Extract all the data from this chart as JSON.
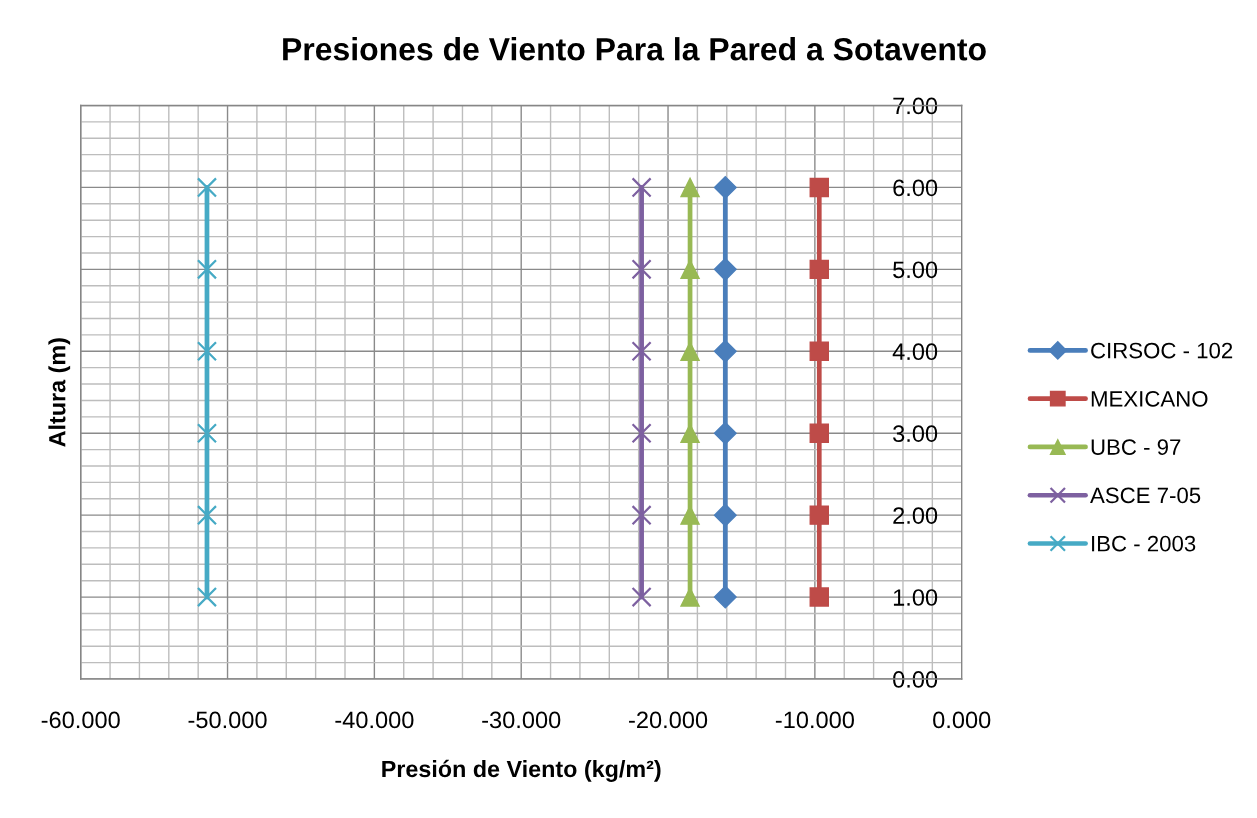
{
  "chart_data": {
    "type": "line",
    "title": "Presiones de Viento Para la Pared a Sotavento",
    "xlabel": "Presión de Viento (kg/m²)",
    "ylabel": "Altura (m)",
    "series": [
      {
        "name": "CIRSOC - 102",
        "color": "#4a7ebb",
        "marker": "diamond",
        "x": [
          -16.1,
          -16.1,
          -16.1,
          -16.1,
          -16.1,
          -16.1
        ],
        "values": [
          1,
          2,
          3,
          4,
          5,
          6
        ]
      },
      {
        "name": "MEXICANO",
        "color": "#be4b48",
        "marker": "square",
        "x": [
          -9.7,
          -9.7,
          -9.7,
          -9.7,
          -9.7,
          -9.7
        ],
        "values": [
          1,
          2,
          3,
          4,
          5,
          6
        ]
      },
      {
        "name": "UBC - 97",
        "color": "#98b954",
        "marker": "triangle",
        "x": [
          -18.5,
          -18.5,
          -18.5,
          -18.5,
          -18.5,
          -18.5
        ],
        "values": [
          1,
          2,
          3,
          4,
          5,
          6
        ]
      },
      {
        "name": "ASCE 7-05",
        "color": "#7d60a0",
        "marker": "cross",
        "x": [
          -21.8,
          -21.8,
          -21.8,
          -21.8,
          -21.8,
          -21.8
        ],
        "values": [
          1,
          2,
          3,
          4,
          5,
          6
        ]
      },
      {
        "name": "IBC - 2003",
        "color": "#46aac5",
        "marker": "cross",
        "x": [
          -51.4,
          -51.4,
          -51.4,
          -51.4,
          -51.4,
          -51.4
        ],
        "values": [
          1,
          2,
          3,
          4,
          5,
          6
        ]
      }
    ],
    "xlim": [
      -60,
      0
    ],
    "xticks": [
      {
        "value": -60,
        "label": "-60.000"
      },
      {
        "value": -58,
        "label": null
      },
      {
        "value": -56,
        "label": null
      },
      {
        "value": -54,
        "label": null
      },
      {
        "value": -52,
        "label": null
      },
      {
        "value": -50,
        "label": "-50.000"
      },
      {
        "value": -48,
        "label": null
      },
      {
        "value": -46,
        "label": null
      },
      {
        "value": -44,
        "label": null
      },
      {
        "value": -42,
        "label": null
      },
      {
        "value": -40,
        "label": "-40.000"
      },
      {
        "value": -38,
        "label": null
      },
      {
        "value": -36,
        "label": null
      },
      {
        "value": -34,
        "label": null
      },
      {
        "value": -32,
        "label": null
      },
      {
        "value": -30,
        "label": "-30.000"
      },
      {
        "value": -28,
        "label": null
      },
      {
        "value": -26,
        "label": null
      },
      {
        "value": -24,
        "label": null
      },
      {
        "value": -22,
        "label": null
      },
      {
        "value": -20,
        "label": "-20.000"
      },
      {
        "value": -18,
        "label": null
      },
      {
        "value": -16,
        "label": null
      },
      {
        "value": -14,
        "label": null
      },
      {
        "value": -12,
        "label": null
      },
      {
        "value": -10,
        "label": "-10.000"
      },
      {
        "value": -8,
        "label": null
      },
      {
        "value": -6,
        "label": null
      },
      {
        "value": -4,
        "label": null
      },
      {
        "value": -2,
        "label": null
      },
      {
        "value": 0,
        "label": "0.000"
      }
    ],
    "ylim": [
      0,
      7
    ],
    "yticks": [
      {
        "value": 0,
        "label": "0.00"
      },
      {
        "value": 0.2,
        "label": null
      },
      {
        "value": 0.4,
        "label": null
      },
      {
        "value": 0.6,
        "label": null
      },
      {
        "value": 0.8,
        "label": null
      },
      {
        "value": 1,
        "label": "1.00"
      },
      {
        "value": 1.2,
        "label": null
      },
      {
        "value": 1.4,
        "label": null
      },
      {
        "value": 1.6,
        "label": null
      },
      {
        "value": 1.8,
        "label": null
      },
      {
        "value": 2,
        "label": "2.00"
      },
      {
        "value": 2.2,
        "label": null
      },
      {
        "value": 2.4,
        "label": null
      },
      {
        "value": 2.6,
        "label": null
      },
      {
        "value": 2.8,
        "label": null
      },
      {
        "value": 3,
        "label": "3.00"
      },
      {
        "value": 3.2,
        "label": null
      },
      {
        "value": 3.4,
        "label": null
      },
      {
        "value": 3.6,
        "label": null
      },
      {
        "value": 3.8,
        "label": null
      },
      {
        "value": 4,
        "label": "4.00"
      },
      {
        "value": 4.2,
        "label": null
      },
      {
        "value": 4.4,
        "label": null
      },
      {
        "value": 4.6,
        "label": null
      },
      {
        "value": 4.8,
        "label": null
      },
      {
        "value": 5,
        "label": "5.00"
      },
      {
        "value": 5.2,
        "label": null
      },
      {
        "value": 5.4,
        "label": null
      },
      {
        "value": 5.6,
        "label": null
      },
      {
        "value": 5.8,
        "label": null
      },
      {
        "value": 6,
        "label": "6.00"
      },
      {
        "value": 6.2,
        "label": null
      },
      {
        "value": 6.4,
        "label": null
      },
      {
        "value": 6.6,
        "label": null
      },
      {
        "value": 6.8,
        "label": null
      },
      {
        "value": 7,
        "label": "7.00"
      }
    ],
    "grid": true,
    "legend": "right",
    "line_style": "solid"
  }
}
